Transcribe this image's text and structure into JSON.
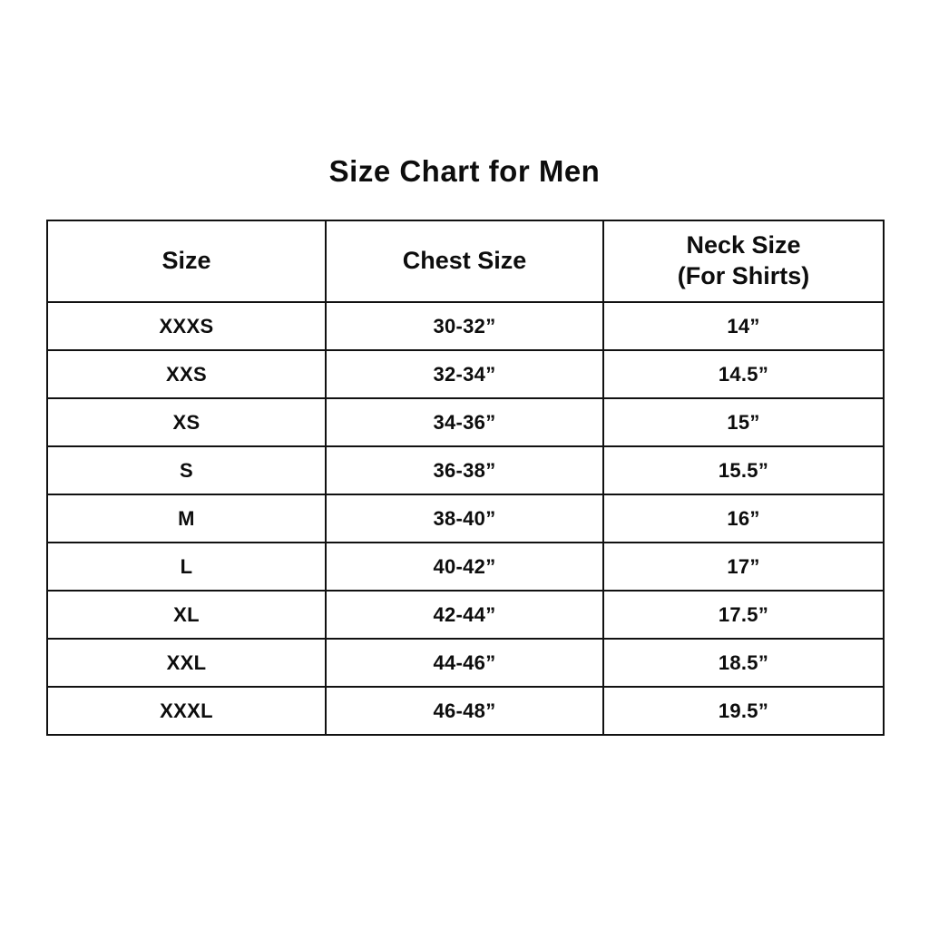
{
  "title": "Size Chart for Men",
  "table": {
    "headers": {
      "size": "Size",
      "chest": "Chest Size",
      "neck_line1": "Neck Size",
      "neck_line2": "(For Shirts)"
    },
    "rows": [
      {
        "size": "XXXS",
        "chest": "30-32”",
        "neck": "14”"
      },
      {
        "size": "XXS",
        "chest": "32-34”",
        "neck": "14.5”"
      },
      {
        "size": "XS",
        "chest": "34-36”",
        "neck": "15”"
      },
      {
        "size": "S",
        "chest": "36-38”",
        "neck": "15.5”"
      },
      {
        "size": "M",
        "chest": "38-40”",
        "neck": "16”"
      },
      {
        "size": "L",
        "chest": "40-42”",
        "neck": "17”"
      },
      {
        "size": "XL",
        "chest": "42-44”",
        "neck": "17.5”"
      },
      {
        "size": "XXL",
        "chest": "44-46”",
        "neck": "18.5”"
      },
      {
        "size": "XXXL",
        "chest": "46-48”",
        "neck": "19.5”"
      }
    ]
  },
  "chart_data": {
    "type": "table",
    "title": "Size Chart for Men",
    "columns": [
      "Size",
      "Chest Size",
      "Neck Size (For Shirts)"
    ],
    "rows": [
      [
        "XXXS",
        "30-32”",
        "14”"
      ],
      [
        "XXS",
        "32-34”",
        "14.5”"
      ],
      [
        "XS",
        "34-36”",
        "15”"
      ],
      [
        "S",
        "36-38”",
        "15.5”"
      ],
      [
        "M",
        "38-40”",
        "16”"
      ],
      [
        "L",
        "40-42”",
        "17”"
      ],
      [
        "XL",
        "42-44”",
        "17.5”"
      ],
      [
        "XXL",
        "44-46”",
        "18.5”"
      ],
      [
        "XXXL",
        "46-48”",
        "19.5”"
      ]
    ],
    "colors": {
      "border": "#111111",
      "background": "#ffffff",
      "text": "#0d0d0d"
    },
    "layout": {
      "grid": true,
      "text_align": "center",
      "font_weight": "bold"
    }
  },
  "colors": {
    "background": "#ffffff",
    "border": "#111111",
    "text": "#0d0d0d"
  }
}
